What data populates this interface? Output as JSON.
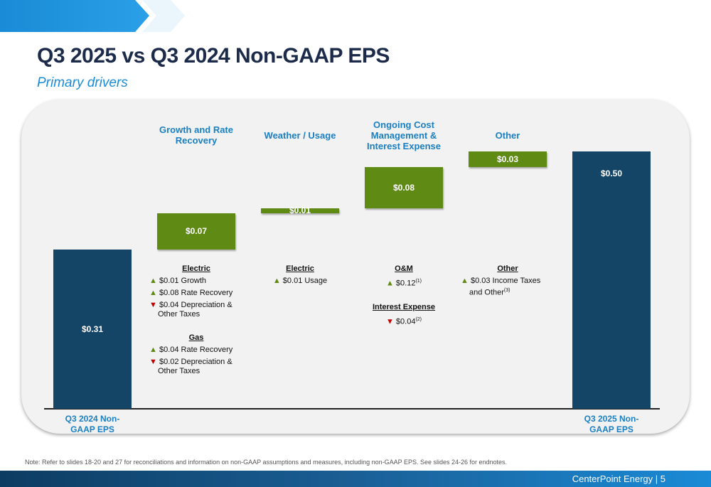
{
  "title": "Q3 2025 vs Q3 2024 Non-GAAP EPS",
  "subtitle": "Primary drivers",
  "chart_data": {
    "type": "waterfall",
    "categories": [
      "Q3 2024 Non-GAAP EPS",
      "Growth and Rate Recovery",
      "Weather / Usage",
      "Ongoing Cost Management & Interest Expense",
      "Other",
      "Q3 2025 Non-GAAP EPS"
    ],
    "values": [
      0.31,
      0.07,
      0.01,
      0.08,
      0.03,
      0.5
    ],
    "value_labels": [
      "$0.31",
      "$0.07",
      "$0.01",
      "$0.08",
      "$0.03",
      "$0.50"
    ],
    "measure": [
      "absolute",
      "relative",
      "relative",
      "relative",
      "relative",
      "total"
    ],
    "colors": {
      "total": "#144466",
      "increase": "#5f8a14"
    }
  },
  "drivers": [
    [
      {
        "heading": "Electric",
        "items": [
          {
            "dir": "up",
            "text": "$0.01  Growth"
          },
          {
            "dir": "up",
            "text": "$0.08  Rate Recovery"
          },
          {
            "dir": "down",
            "text": "$0.04 Depreciation & Other Taxes"
          }
        ]
      },
      {
        "heading": "Gas",
        "items": [
          {
            "dir": "up",
            "text": "$0.04 Rate Recovery"
          },
          {
            "dir": "down",
            "text": "$0.02 Depreciation & Other Taxes"
          }
        ]
      }
    ],
    [
      {
        "heading": "Electric",
        "items": [
          {
            "dir": "up",
            "text": "$0.01 Usage"
          }
        ]
      }
    ],
    [
      {
        "heading": "O&M",
        "items": [
          {
            "dir": "up",
            "text": "$0.12",
            "note": "(1)"
          }
        ]
      },
      {
        "heading": "Interest Expense",
        "items": [
          {
            "dir": "down",
            "text": "$0.04",
            "note": "(2)"
          }
        ]
      }
    ],
    [
      {
        "heading": "Other",
        "items": [
          {
            "dir": "up",
            "text": "$0.03 Income Taxes and Other",
            "note": "(3)"
          }
        ]
      }
    ]
  ],
  "note": "Note: Refer to slides 18-20 and 27 for reconciliations and information on non-GAAP assumptions and measures, including non-GAAP EPS. See slides 24-26 for endnotes.",
  "footer": "CenterPoint Energy | 5"
}
